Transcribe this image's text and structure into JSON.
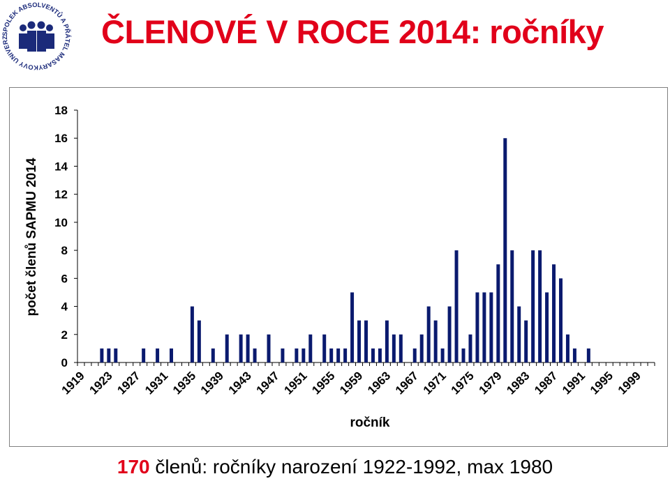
{
  "header": {
    "title": "ČLENOVÉ V ROCE 2014: ročníky",
    "logo_text": "SPOLEK ABSOLVENTŮ A PŘÁTEL MASARYKOVY UNIVERZITY"
  },
  "caption": {
    "count": "170",
    "text": " členů: ročníky narození 1922-1992, max 1980"
  },
  "colors": {
    "title": "#e1001a",
    "bars": "#0a1a6e",
    "logo": "#1b2a7a"
  },
  "chart_data": {
    "type": "bar",
    "title": "",
    "xlabel": "ročník",
    "ylabel": "počet členů SAPMU 2014",
    "ylim": [
      0,
      18
    ],
    "yticks": [
      0,
      2,
      4,
      6,
      8,
      10,
      12,
      14,
      16,
      18
    ],
    "xtick_labels": [
      "1919",
      "1923",
      "1927",
      "1931",
      "1935",
      "1939",
      "1943",
      "1947",
      "1951",
      "1955",
      "1959",
      "1963",
      "1967",
      "1971",
      "1975",
      "1979",
      "1983",
      "1987",
      "1991",
      "1995",
      "1999"
    ],
    "categories": [
      1919,
      1920,
      1921,
      1922,
      1923,
      1924,
      1925,
      1926,
      1927,
      1928,
      1929,
      1930,
      1931,
      1932,
      1933,
      1934,
      1935,
      1936,
      1937,
      1938,
      1939,
      1940,
      1941,
      1942,
      1943,
      1944,
      1945,
      1946,
      1947,
      1948,
      1949,
      1950,
      1951,
      1952,
      1953,
      1954,
      1955,
      1956,
      1957,
      1958,
      1959,
      1960,
      1961,
      1962,
      1963,
      1964,
      1965,
      1966,
      1967,
      1968,
      1969,
      1970,
      1971,
      1972,
      1973,
      1974,
      1975,
      1976,
      1977,
      1978,
      1979,
      1980,
      1981,
      1982,
      1983,
      1984,
      1985,
      1986,
      1987,
      1988,
      1989,
      1990,
      1991,
      1992,
      1993,
      1994,
      1995,
      1996,
      1997,
      1998,
      1999,
      2000,
      2001
    ],
    "values": [
      0,
      0,
      0,
      1,
      1,
      1,
      0,
      0,
      0,
      1,
      0,
      1,
      0,
      1,
      0,
      0,
      4,
      3,
      0,
      1,
      0,
      2,
      0,
      2,
      2,
      1,
      0,
      2,
      0,
      1,
      0,
      1,
      1,
      2,
      0,
      2,
      1,
      1,
      1,
      5,
      3,
      3,
      1,
      1,
      3,
      2,
      2,
      0,
      1,
      2,
      4,
      3,
      1,
      4,
      8,
      1,
      2,
      5,
      5,
      5,
      7,
      16,
      8,
      4,
      3,
      8,
      8,
      5,
      7,
      6,
      2,
      1,
      0,
      1,
      0,
      0,
      0,
      0,
      0,
      0,
      0,
      0,
      0
    ],
    "grid": false,
    "legend": "none"
  }
}
